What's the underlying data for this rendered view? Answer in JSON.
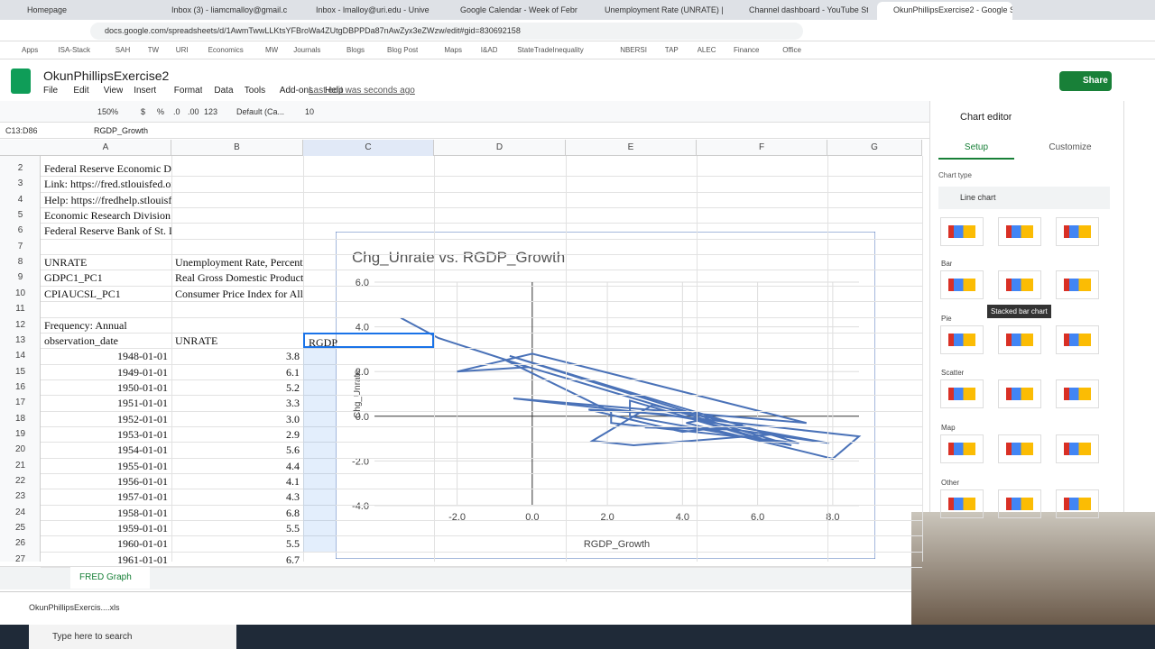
{
  "browser": {
    "tabs": [
      "Homepage",
      "Inbox (3) - liamcmalloy@gmail.c",
      "Inbox - lmalloy@uri.edu - Unive",
      "Google Calendar - Week of Febr",
      "Unemployment Rate (UNRATE) |",
      "Channel dashboard - YouTube St",
      "OkunPhillipsExercise2 - Google S"
    ],
    "url": "docs.google.com/spreadsheets/d/1AwmTwwLLKtsYFBroWa4ZUtgDBPPDa87nAwZyx3eZWzw/edit#gid=830692158",
    "bookmarks": [
      "Apps",
      "ISA-Stack",
      "SAH",
      "TW",
      "URI",
      "Economics",
      "MW",
      "Journals",
      "Blogs",
      "Blog Post",
      "Maps",
      "I&AD",
      "StateTradeInequality",
      "NBERSI",
      "TAP",
      "ALEC",
      "Finance",
      "Office"
    ]
  },
  "sheet": {
    "title": "OkunPhillipsExercise2",
    "menus": [
      "File",
      "Edit",
      "View",
      "Insert",
      "Format",
      "Data",
      "Tools",
      "Add-ons",
      "Help"
    ],
    "last_edit": "Last edit was seconds ago",
    "share": "Share",
    "toolbar": [
      "150%",
      "$",
      "%",
      ".0",
      ".00",
      "123",
      "Default (Ca...",
      "10"
    ],
    "name_box": "C13:D86",
    "formula": "RGDP_Growth",
    "columns": [
      "A",
      "B",
      "C",
      "D",
      "E",
      "F",
      "G"
    ],
    "rows": [
      {
        "number": 2,
        "A": "Federal Reserve Economic Data"
      },
      {
        "number": 3,
        "A": "Link: https://fred.stlouisfed.org"
      },
      {
        "number": 4,
        "A": "Help: https://fredhelp.stlouisfed.org"
      },
      {
        "number": 5,
        "A": "Economic Research Division"
      },
      {
        "number": 6,
        "A": "Federal Reserve Bank of St. Louis"
      },
      {
        "number": 7
      },
      {
        "number": 8,
        "A": "UNRATE",
        "B": "Unemployment Rate, Percent, An"
      },
      {
        "number": 9,
        "A": "GDPC1_PC1",
        "B": "Real Gross Domestic Product, Pe"
      },
      {
        "number": 10,
        "A": "CPIAUCSL_PC1",
        "B": "Consumer Price Index for All Urb"
      },
      {
        "number": 11
      },
      {
        "number": 12,
        "A": "Frequency: Annual"
      },
      {
        "number": 13,
        "A": "observation_date",
        "B": "UNRATE",
        "C": "RGDP"
      },
      {
        "number": 14,
        "A": "1948-01-01",
        "B": "3.8"
      },
      {
        "number": 15,
        "A": "1949-01-01",
        "B": "6.1"
      },
      {
        "number": 16,
        "A": "1950-01-01",
        "B": "5.2"
      },
      {
        "number": 17,
        "A": "1951-01-01",
        "B": "3.3"
      },
      {
        "number": 18,
        "A": "1952-01-01",
        "B": "3.0"
      },
      {
        "number": 19,
        "A": "1953-01-01",
        "B": "2.9"
      },
      {
        "number": 20,
        "A": "1954-01-01",
        "B": "5.6"
      },
      {
        "number": 21,
        "A": "1955-01-01",
        "B": "4.4"
      },
      {
        "number": 22,
        "A": "1956-01-01",
        "B": "4.1"
      },
      {
        "number": 23,
        "A": "1957-01-01",
        "B": "4.3"
      },
      {
        "number": 24,
        "A": "1958-01-01",
        "B": "6.8"
      },
      {
        "number": 25,
        "A": "1959-01-01",
        "B": "5.5"
      },
      {
        "number": 26,
        "A": "1960-01-01",
        "B": "5.5"
      },
      {
        "number": 27,
        "A": "1961-01-01",
        "B": "6.7"
      }
    ],
    "tab": "FRED Graph"
  },
  "chart_data": {
    "type": "line",
    "title": "Chg_Unrate vs. RGDP_Growth",
    "x_label": "RGDP_Growth",
    "y_label": "Chg_Unrate",
    "color": "#4a72b8",
    "x": [
      -3.5,
      -2.5,
      -0.1,
      -2.0,
      0.0,
      7.3,
      -0.5,
      8.7,
      8.0,
      4.1,
      4.7,
      -0.6,
      7.1,
      2.1,
      2.1,
      -0.7,
      6.9,
      2.6,
      2.6,
      6.1,
      4.4,
      5.8,
      6.5,
      2.7,
      1.6,
      3.2,
      5.6,
      4.0,
      1.5,
      3.5,
      7.9,
      5.4,
      3.0
    ],
    "values": [
      4.4,
      3.5,
      2.2,
      2.0,
      2.8,
      -0.3,
      0.8,
      -0.9,
      -1.9,
      -0.3,
      -0.1,
      2.7,
      -1.2,
      -0.3,
      0.2,
      2.5,
      -1.3,
      0.0,
      0.7,
      -1.0,
      -0.2,
      -0.9,
      -0.8,
      -1.3,
      -1.1,
      0.5,
      -0.4,
      -0.7,
      0.3,
      0.1,
      -1.2,
      -0.6,
      -0.5
    ],
    "xlim": [
      -4.2,
      8.7
    ],
    "ylim": [
      -4,
      6
    ],
    "xticks": [
      {
        "value": -2,
        "label": "-2.0"
      },
      {
        "value": 0,
        "label": "0.0"
      },
      {
        "value": 2,
        "label": "2.0"
      },
      {
        "value": 4,
        "label": "4.0"
      },
      {
        "value": 6,
        "label": "6.0"
      },
      {
        "value": 8,
        "label": "8.0"
      }
    ],
    "yticks": [
      {
        "value": -4,
        "label": "-4.0"
      },
      {
        "value": -2,
        "label": "-2.0"
      },
      {
        "value": 0,
        "label": "0.0"
      },
      {
        "value": 2,
        "label": "2.0"
      },
      {
        "value": 4,
        "label": "4.0"
      },
      {
        "value": 6,
        "label": "6.0"
      }
    ],
    "grid": true
  },
  "editor": {
    "title": "Chart editor",
    "tabs": [
      "Setup",
      "Customize"
    ],
    "chart_type_label": "Chart type",
    "chart_type": "Line chart",
    "sections": [
      "Bar",
      "Pie",
      "Scatter",
      "Map",
      "Other"
    ],
    "tooltip": "Stacked bar chart"
  },
  "downloads": {
    "file": "OkunPhillipsExercis....xls"
  },
  "taskbar": {
    "search": "Type here to search"
  }
}
